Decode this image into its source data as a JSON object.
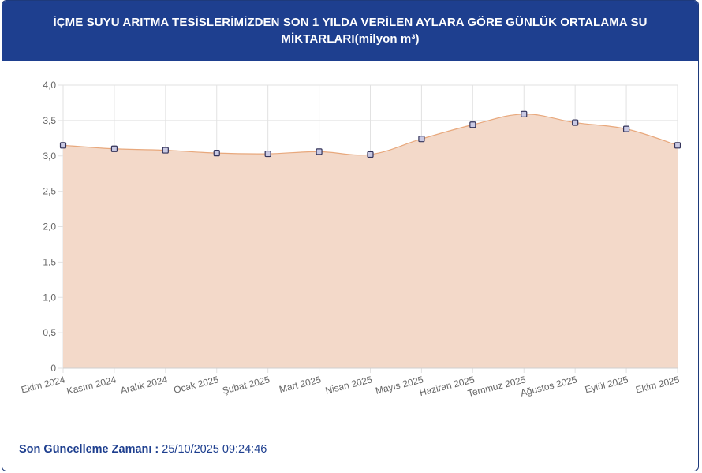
{
  "header": {
    "title": "İÇME SUYU ARITMA TESİSLERİMİZDEN SON 1 YILDA VERİLEN AYLARA GÖRE GÜNLÜK ORTALAMA SU MİKTARLARI(milyon m³)"
  },
  "chart_data": {
    "type": "area",
    "categories": [
      "Ekim 2024",
      "Kasım 2024",
      "Aralık 2024",
      "Ocak 2025",
      "Şubat 2025",
      "Mart 2025",
      "Nisan 2025",
      "Mayıs 2025",
      "Haziran 2025",
      "Temmuz 2025",
      "Ağustos 2025",
      "Eylül 2025",
      "Ekim 2025"
    ],
    "series": [
      {
        "values": [
          3.15,
          3.1,
          3.08,
          3.04,
          3.03,
          3.06,
          3.02,
          3.24,
          3.44,
          3.59,
          3.47,
          3.38,
          3.15
        ]
      }
    ],
    "ylim": [
      0,
      4.0
    ],
    "yticks": [
      "0",
      "0,5",
      "1,0",
      "1,5",
      "2,0",
      "2,5",
      "3,0",
      "3,5",
      "4,0"
    ],
    "grid": true,
    "legend": "none",
    "colors": {
      "fill": "#f3d9c9",
      "line": "#e8a87c",
      "marker_fill": "#c9c9e3",
      "marker_stroke": "#33335a",
      "grid": "#e2e2e2"
    }
  },
  "footer": {
    "label": "Son Güncelleme Zamanı :",
    "value": "25/10/2025 09:24:46"
  }
}
